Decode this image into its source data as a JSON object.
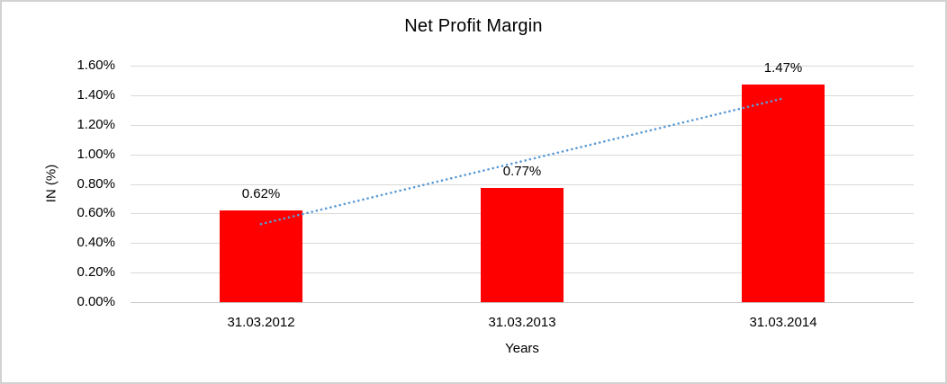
{
  "chart_data": {
    "type": "bar",
    "title": "Net Profit Margin",
    "xlabel": "Years",
    "ylabel": "IN (%)",
    "categories": [
      "31.03.2012",
      "31.03.2013",
      "31.03.2014"
    ],
    "values": [
      0.62,
      0.77,
      1.47
    ],
    "data_labels": [
      "0.62%",
      "0.77%",
      "1.47%"
    ],
    "y_ticks": [
      "0.00%",
      "0.20%",
      "0.40%",
      "0.60%",
      "0.80%",
      "1.00%",
      "1.20%",
      "1.40%",
      "1.60%"
    ],
    "ylim": [
      0,
      1.6
    ],
    "grid": true,
    "legend": "none",
    "bar_color": "#FF0000",
    "gridline_color": "#D9D9D9",
    "trendline": {
      "type": "linear",
      "style": "dotted",
      "color": "#5B9BD5",
      "start_value": 0.53,
      "end_value": 1.38
    }
  }
}
